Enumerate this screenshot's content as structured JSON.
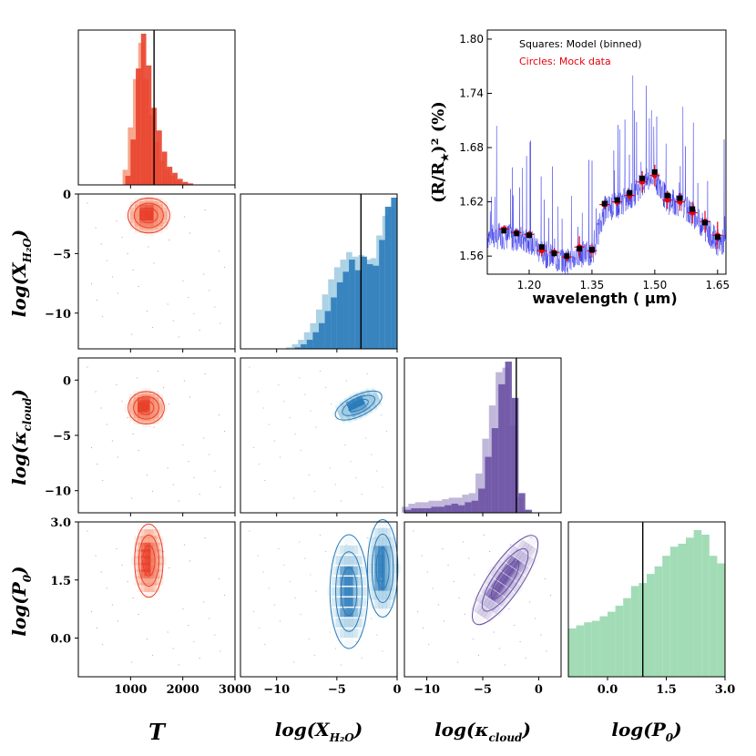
{
  "chart_data": [
    {
      "type": "corner_plot",
      "parameters": [
        {
          "key": "T",
          "label": "T",
          "truth": 1450,
          "color": "#e8412b",
          "light": "#f7967a",
          "ticks": [
            1000,
            2000,
            3000
          ],
          "range": [
            0,
            3000
          ]
        },
        {
          "key": "xh2o",
          "label": "log(X_H2O)",
          "truth": -3.0,
          "color": "#2b7bba",
          "light": "#9ecae1",
          "ticks": [
            -10,
            -5,
            0
          ],
          "range": [
            -13,
            0
          ]
        },
        {
          "key": "kcloud",
          "label": "log(κ_cloud)",
          "truth": -2.0,
          "color": "#6a51a3",
          "light": "#b5aad4",
          "ticks": [
            -10,
            -5,
            0
          ],
          "range": [
            -12,
            2
          ]
        },
        {
          "key": "p0",
          "label": "log(P_0)",
          "truth": 0.9,
          "color": "#41ae76",
          "light": "#98d8ae",
          "ticks": [
            0.0,
            1.5,
            3.0
          ],
          "range": [
            -1,
            3
          ]
        }
      ],
      "axis_labels": {
        "T": "T",
        "xh2o_main": "log(X",
        "xh2o_sub": "H₂O",
        "kcloud_main": "log(κ",
        "kcloud_sub": "cloud",
        "p0_main": "log(P",
        "p0_sub": "0"
      },
      "tick_labels": {
        "T": [
          "1000",
          "2000",
          "3000"
        ],
        "xh2o_x": [
          "−10",
          "−5",
          "0"
        ],
        "kcloud_x": [
          "−10",
          "−5",
          "0"
        ],
        "p0_x": [
          "0.0",
          "1.5",
          "3.0"
        ],
        "xh2o_y": [
          "0",
          "−5",
          "−10"
        ],
        "kcloud_y": [
          "0",
          "−5",
          "−10"
        ],
        "p0_y": [
          "3.0",
          "1.5",
          "0.0"
        ]
      },
      "histograms": {
        "T": {
          "edges_start": 900,
          "bin_width": 100,
          "dark": [
            0.06,
            0.3,
            0.77,
            1.0,
            0.79,
            0.51,
            0.36,
            0.22,
            0.12,
            0.08,
            0.04,
            0.02,
            0.01,
            0.0,
            0.0,
            0.0
          ],
          "light": [
            0.1,
            0.38,
            0.7,
            0.94,
            0.7,
            0.46,
            0.28,
            0.16,
            0.1,
            0.06,
            0.03,
            0.01,
            0.0,
            0.0,
            0.0,
            0.0
          ]
        },
        "xh2o": {
          "edges_start": -9,
          "bin_width": 0.5,
          "dark": [
            0.0,
            0.01,
            0.03,
            0.06,
            0.11,
            0.17,
            0.25,
            0.34,
            0.44,
            0.51,
            0.59,
            0.52,
            0.61,
            0.56,
            0.55,
            0.72,
            0.94,
            1.0
          ],
          "light": [
            0.01,
            0.03,
            0.06,
            0.11,
            0.17,
            0.26,
            0.36,
            0.46,
            0.54,
            0.59,
            0.64,
            0.61,
            0.62,
            0.59,
            0.6,
            0.75,
            0.88,
            0.93
          ]
        },
        "kcloud": {
          "edges_start": -12,
          "bin_width": 0.6,
          "dark": [
            0.02,
            0.03,
            0.03,
            0.03,
            0.04,
            0.04,
            0.05,
            0.06,
            0.05,
            0.07,
            0.08,
            0.16,
            0.37,
            0.56,
            0.85,
            1.0,
            0.76,
            0.13,
            0.02,
            0.0
          ],
          "light": [
            0.04,
            0.06,
            0.07,
            0.07,
            0.08,
            0.08,
            0.09,
            0.1,
            0.1,
            0.12,
            0.13,
            0.26,
            0.49,
            0.71,
            0.93,
            0.96,
            0.58,
            0.1,
            0.02,
            0.0
          ]
        },
        "p0": {
          "edges_start": -1,
          "bin_width": 0.2,
          "values": [
            0.32,
            0.34,
            0.36,
            0.37,
            0.4,
            0.43,
            0.47,
            0.52,
            0.6,
            0.62,
            0.68,
            0.73,
            0.8,
            0.86,
            0.88,
            0.92,
            0.97,
            0.94,
            0.8,
            0.75
          ]
        }
      }
    },
    {
      "type": "line",
      "title": "",
      "xlabel": "wavelength ( μm)",
      "ylabel_main": "(R/R",
      "ylabel_sub": "★",
      "ylabel_tail": ")² (%)",
      "xlim": [
        1.1,
        1.67
      ],
      "ylim": [
        1.54,
        1.81
      ],
      "xticks": [
        1.2,
        1.35,
        1.5,
        1.65
      ],
      "xtick_labels": [
        "1.20",
        "1.35",
        "1.50",
        "1.65"
      ],
      "yticks": [
        1.56,
        1.62,
        1.68,
        1.74,
        1.8
      ],
      "ytick_labels": [
        "1.56",
        "1.62",
        "1.68",
        "1.74",
        "1.80"
      ],
      "legend": {
        "squares": "Squares: Model (binned)",
        "circles": "Circles: Mock data"
      },
      "series": [
        {
          "name": "Model (binned)",
          "marker": "square",
          "color": "#000000",
          "x": [
            1.14,
            1.17,
            1.2,
            1.23,
            1.26,
            1.29,
            1.32,
            1.35,
            1.38,
            1.41,
            1.44,
            1.47,
            1.5,
            1.53,
            1.56,
            1.59,
            1.62,
            1.65
          ],
          "y": [
            1.588,
            1.585,
            1.583,
            1.57,
            1.563,
            1.56,
            1.568,
            1.567,
            1.618,
            1.622,
            1.63,
            1.646,
            1.653,
            1.627,
            1.624,
            1.612,
            1.597,
            1.581
          ]
        },
        {
          "name": "Mock data",
          "marker": "circle",
          "color": "#e8000b",
          "x": [
            1.14,
            1.17,
            1.2,
            1.23,
            1.26,
            1.29,
            1.32,
            1.35,
            1.38,
            1.41,
            1.44,
            1.47,
            1.5,
            1.53,
            1.56,
            1.59,
            1.62,
            1.65
          ],
          "y": [
            1.59,
            1.586,
            1.584,
            1.566,
            1.564,
            1.559,
            1.57,
            1.566,
            1.617,
            1.62,
            1.627,
            1.642,
            1.649,
            1.622,
            1.62,
            1.608,
            1.598,
            1.583
          ],
          "err": [
            0.004,
            0.004,
            0.004,
            0.006,
            0.005,
            0.005,
            0.012,
            0.008,
            0.005,
            0.005,
            0.006,
            0.012,
            0.012,
            0.01,
            0.01,
            0.012,
            0.012,
            0.015
          ]
        }
      ]
    }
  ]
}
